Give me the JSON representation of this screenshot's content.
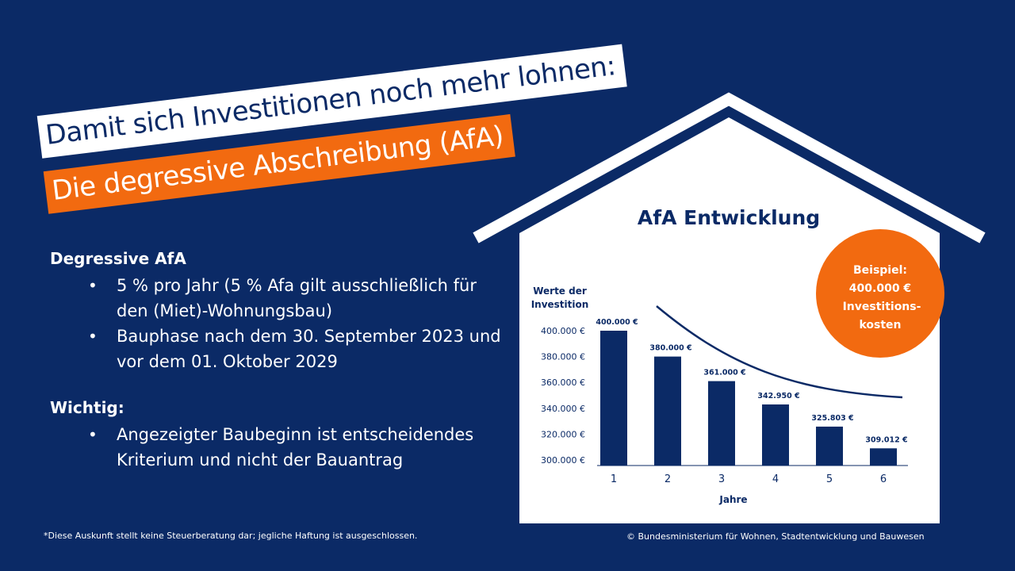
{
  "headline": {
    "line1": "Damit sich Investitionen noch mehr lohnen:",
    "line2": "Die degressive Abschreibung (AfA)"
  },
  "info": {
    "degressive": {
      "title": "Degressive AfA",
      "bullets": [
        "5 % pro Jahr (5 % Afa gilt ausschließlich für den (Miet)-Wohnungsbau)",
        "Bauphase nach dem 30. September 2023 und vor dem 01. Oktober 2029"
      ]
    },
    "wichtig": {
      "title": "Wichtig:",
      "bullets": [
        "Angezeigter Baubeginn ist entscheidendes Kriterium und nicht der Bauantrag"
      ]
    }
  },
  "footer": {
    "disclaimer": "*Diese Auskunft stellt keine Steuerberatung dar; jegliche Haftung ist ausgeschlossen.",
    "copyright": "©  Bundesministerium für Wohnen, Stadtentwicklung und Bauwesen"
  },
  "badge": {
    "lines": [
      "Beispiel:",
      "400.000 €",
      "Investitions-",
      "kosten"
    ]
  },
  "colors": {
    "background": "#0b2a66",
    "accent": "#f26a10",
    "bars": "#0b2a66",
    "house": "#ffffff"
  },
  "chart_data": {
    "type": "bar",
    "title": "AfA Entwicklung",
    "ylabel_lines": [
      "Werte der",
      "Investition"
    ],
    "xlabel": "Jahre",
    "categories": [
      "1",
      "2",
      "3",
      "4",
      "5",
      "6"
    ],
    "values": [
      400000,
      380000,
      361000,
      342950,
      325803,
      309012
    ],
    "value_labels": [
      "400.000 €",
      "380.000 €",
      "361.000 €",
      "342.950 €",
      "325.803 €",
      "309.012 €"
    ],
    "yticks": [
      300000,
      320000,
      340000,
      360000,
      380000,
      400000
    ],
    "ytick_labels": [
      "300.000 €",
      "320.000 €",
      "340.000 €",
      "360.000 €",
      "380.000 €",
      "400.000 €"
    ],
    "ylim": [
      300000,
      400000
    ],
    "trend_curve": true,
    "grid": false
  }
}
